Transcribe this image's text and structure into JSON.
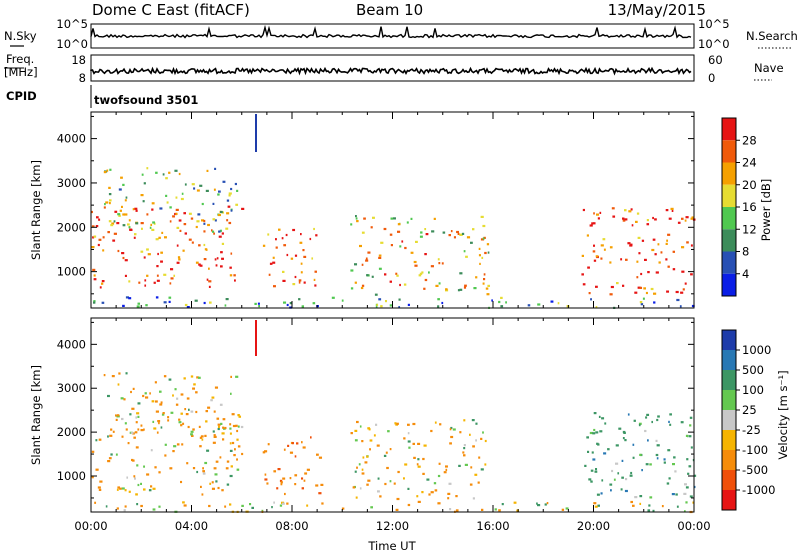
{
  "header": {
    "station": "Dome C East (fitACF)",
    "beam": "Beam 10",
    "date": "13/May/2015"
  },
  "status_panels": {
    "nsky_label": "N.Sky",
    "freq_label_top": "Freq.",
    "freq_label_unit": "[MHz]",
    "cpid_label": "CPID",
    "nsearch_label": "N.Search",
    "nave_label": "Nave",
    "cpid_value": "twofsound 3501",
    "left_ticks_noise": [
      "10^5",
      "10^0"
    ],
    "right_ticks_noise": [
      "10^5",
      "10^0"
    ],
    "freq_ticks": [
      "18",
      "8"
    ],
    "nave_ticks": [
      "60",
      "0"
    ]
  },
  "chart_data": [
    {
      "type": "heatmap",
      "panel": "power",
      "ylabel": "Slant Range [km]",
      "xlabel": "Time UT",
      "x_ticks": [
        "00:00",
        "04:00",
        "08:00",
        "12:00",
        "16:00",
        "20:00",
        "00:00"
      ],
      "x_range_hours": [
        0,
        24
      ],
      "y_ticks": [
        1000,
        2000,
        3000,
        4000
      ],
      "y_range_km": [
        180,
        4600
      ],
      "colorbar_label": "Power [dB]",
      "colorbar_ticks": [
        "4",
        "8",
        "12",
        "16",
        "20",
        "24",
        "28"
      ],
      "colorbar_colors": [
        "#0a1ee6",
        "#2850b4",
        "#3c8c5a",
        "#50c850",
        "#e6dc32",
        "#f5a000",
        "#f05a0a",
        "#e61414"
      ],
      "scatter_regions": [
        {
          "t0": 0.0,
          "t1": 6.0,
          "r0": 600,
          "r1": 2500,
          "value": 26
        },
        {
          "t0": 0.5,
          "t1": 5.8,
          "r0": 1900,
          "r1": 3400,
          "value": 14
        },
        {
          "t0": 6.8,
          "t1": 9.2,
          "r0": 600,
          "r1": 2000,
          "value": 24
        },
        {
          "t0": 10.3,
          "t1": 15.8,
          "r0": 500,
          "r1": 2300,
          "value": 18
        },
        {
          "t0": 19.5,
          "t1": 24.0,
          "r0": 500,
          "r1": 2500,
          "value": 26
        },
        {
          "t0": 0.0,
          "t1": 24.0,
          "r0": 200,
          "r1": 450,
          "value": 8
        }
      ]
    },
    {
      "type": "heatmap",
      "panel": "velocity",
      "ylabel": "Slant Range [km]",
      "xlabel": "Time UT",
      "x_ticks": [
        "00:00",
        "04:00",
        "08:00",
        "12:00",
        "16:00",
        "20:00",
        "00:00"
      ],
      "x_range_hours": [
        0,
        24
      ],
      "y_ticks": [
        1000,
        2000,
        3000,
        4000
      ],
      "y_range_km": [
        180,
        4600
      ],
      "colorbar_label": "Velocity [m s⁻¹]",
      "colorbar_ticks": [
        "1000",
        "500",
        "100",
        "25",
        "-25",
        "-100",
        "-500",
        "-1000"
      ],
      "colorbar_colors": [
        "#1e3caa",
        "#2878b4",
        "#3c9664",
        "#64c850",
        "#c8c8c8",
        "#f5b400",
        "#f58c0a",
        "#f0500a",
        "#e61414"
      ],
      "scatter_regions": [
        {
          "t0": 0.0,
          "t1": 6.0,
          "r0": 600,
          "r1": 2500,
          "value": -150
        },
        {
          "t0": 0.5,
          "t1": 5.8,
          "r0": 1900,
          "r1": 3400,
          "value": -120
        },
        {
          "t0": 6.8,
          "t1": 9.2,
          "r0": 600,
          "r1": 2000,
          "value": -400
        },
        {
          "t0": 10.3,
          "t1": 15.8,
          "r0": 500,
          "r1": 2300,
          "value": -100
        },
        {
          "t0": 19.5,
          "t1": 24.0,
          "r0": 500,
          "r1": 2500,
          "value": 300
        },
        {
          "t0": 0.0,
          "t1": 24.0,
          "r0": 200,
          "r1": 450,
          "value": -60
        }
      ]
    }
  ]
}
